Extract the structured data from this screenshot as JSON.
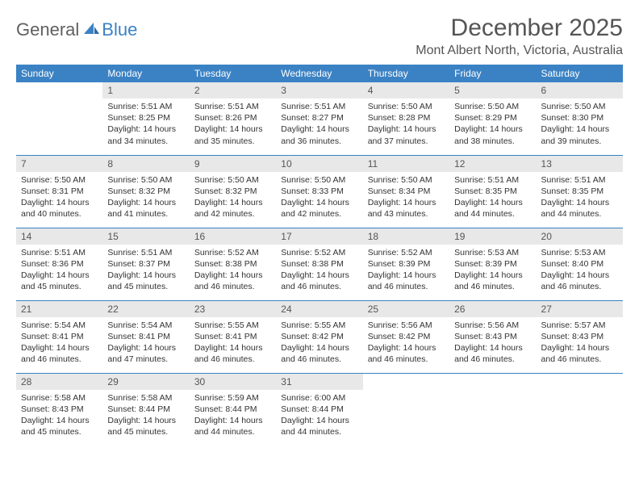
{
  "logo": {
    "text1": "General",
    "text2": "Blue"
  },
  "title": "December 2025",
  "location": "Mont Albert North, Victoria, Australia",
  "colors": {
    "header_bg": "#3b82c4",
    "header_text": "#ffffff",
    "daynum_bg": "#e8e8e8",
    "border": "#3b82c4",
    "logo_gray": "#606060",
    "logo_blue": "#3b82c4"
  },
  "weekdays": [
    "Sunday",
    "Monday",
    "Tuesday",
    "Wednesday",
    "Thursday",
    "Friday",
    "Saturday"
  ],
  "weeks": [
    [
      null,
      {
        "n": "1",
        "sr": "5:51 AM",
        "ss": "8:25 PM",
        "dl": "14 hours and 34 minutes."
      },
      {
        "n": "2",
        "sr": "5:51 AM",
        "ss": "8:26 PM",
        "dl": "14 hours and 35 minutes."
      },
      {
        "n": "3",
        "sr": "5:51 AM",
        "ss": "8:27 PM",
        "dl": "14 hours and 36 minutes."
      },
      {
        "n": "4",
        "sr": "5:50 AM",
        "ss": "8:28 PM",
        "dl": "14 hours and 37 minutes."
      },
      {
        "n": "5",
        "sr": "5:50 AM",
        "ss": "8:29 PM",
        "dl": "14 hours and 38 minutes."
      },
      {
        "n": "6",
        "sr": "5:50 AM",
        "ss": "8:30 PM",
        "dl": "14 hours and 39 minutes."
      }
    ],
    [
      {
        "n": "7",
        "sr": "5:50 AM",
        "ss": "8:31 PM",
        "dl": "14 hours and 40 minutes."
      },
      {
        "n": "8",
        "sr": "5:50 AM",
        "ss": "8:32 PM",
        "dl": "14 hours and 41 minutes."
      },
      {
        "n": "9",
        "sr": "5:50 AM",
        "ss": "8:32 PM",
        "dl": "14 hours and 42 minutes."
      },
      {
        "n": "10",
        "sr": "5:50 AM",
        "ss": "8:33 PM",
        "dl": "14 hours and 42 minutes."
      },
      {
        "n": "11",
        "sr": "5:50 AM",
        "ss": "8:34 PM",
        "dl": "14 hours and 43 minutes."
      },
      {
        "n": "12",
        "sr": "5:51 AM",
        "ss": "8:35 PM",
        "dl": "14 hours and 44 minutes."
      },
      {
        "n": "13",
        "sr": "5:51 AM",
        "ss": "8:35 PM",
        "dl": "14 hours and 44 minutes."
      }
    ],
    [
      {
        "n": "14",
        "sr": "5:51 AM",
        "ss": "8:36 PM",
        "dl": "14 hours and 45 minutes."
      },
      {
        "n": "15",
        "sr": "5:51 AM",
        "ss": "8:37 PM",
        "dl": "14 hours and 45 minutes."
      },
      {
        "n": "16",
        "sr": "5:52 AM",
        "ss": "8:38 PM",
        "dl": "14 hours and 46 minutes."
      },
      {
        "n": "17",
        "sr": "5:52 AM",
        "ss": "8:38 PM",
        "dl": "14 hours and 46 minutes."
      },
      {
        "n": "18",
        "sr": "5:52 AM",
        "ss": "8:39 PM",
        "dl": "14 hours and 46 minutes."
      },
      {
        "n": "19",
        "sr": "5:53 AM",
        "ss": "8:39 PM",
        "dl": "14 hours and 46 minutes."
      },
      {
        "n": "20",
        "sr": "5:53 AM",
        "ss": "8:40 PM",
        "dl": "14 hours and 46 minutes."
      }
    ],
    [
      {
        "n": "21",
        "sr": "5:54 AM",
        "ss": "8:41 PM",
        "dl": "14 hours and 46 minutes."
      },
      {
        "n": "22",
        "sr": "5:54 AM",
        "ss": "8:41 PM",
        "dl": "14 hours and 47 minutes."
      },
      {
        "n": "23",
        "sr": "5:55 AM",
        "ss": "8:41 PM",
        "dl": "14 hours and 46 minutes."
      },
      {
        "n": "24",
        "sr": "5:55 AM",
        "ss": "8:42 PM",
        "dl": "14 hours and 46 minutes."
      },
      {
        "n": "25",
        "sr": "5:56 AM",
        "ss": "8:42 PM",
        "dl": "14 hours and 46 minutes."
      },
      {
        "n": "26",
        "sr": "5:56 AM",
        "ss": "8:43 PM",
        "dl": "14 hours and 46 minutes."
      },
      {
        "n": "27",
        "sr": "5:57 AM",
        "ss": "8:43 PM",
        "dl": "14 hours and 46 minutes."
      }
    ],
    [
      {
        "n": "28",
        "sr": "5:58 AM",
        "ss": "8:43 PM",
        "dl": "14 hours and 45 minutes."
      },
      {
        "n": "29",
        "sr": "5:58 AM",
        "ss": "8:44 PM",
        "dl": "14 hours and 45 minutes."
      },
      {
        "n": "30",
        "sr": "5:59 AM",
        "ss": "8:44 PM",
        "dl": "14 hours and 44 minutes."
      },
      {
        "n": "31",
        "sr": "6:00 AM",
        "ss": "8:44 PM",
        "dl": "14 hours and 44 minutes."
      },
      null,
      null,
      null
    ]
  ],
  "labels": {
    "sunrise": "Sunrise:",
    "sunset": "Sunset:",
    "daylight": "Daylight:"
  }
}
